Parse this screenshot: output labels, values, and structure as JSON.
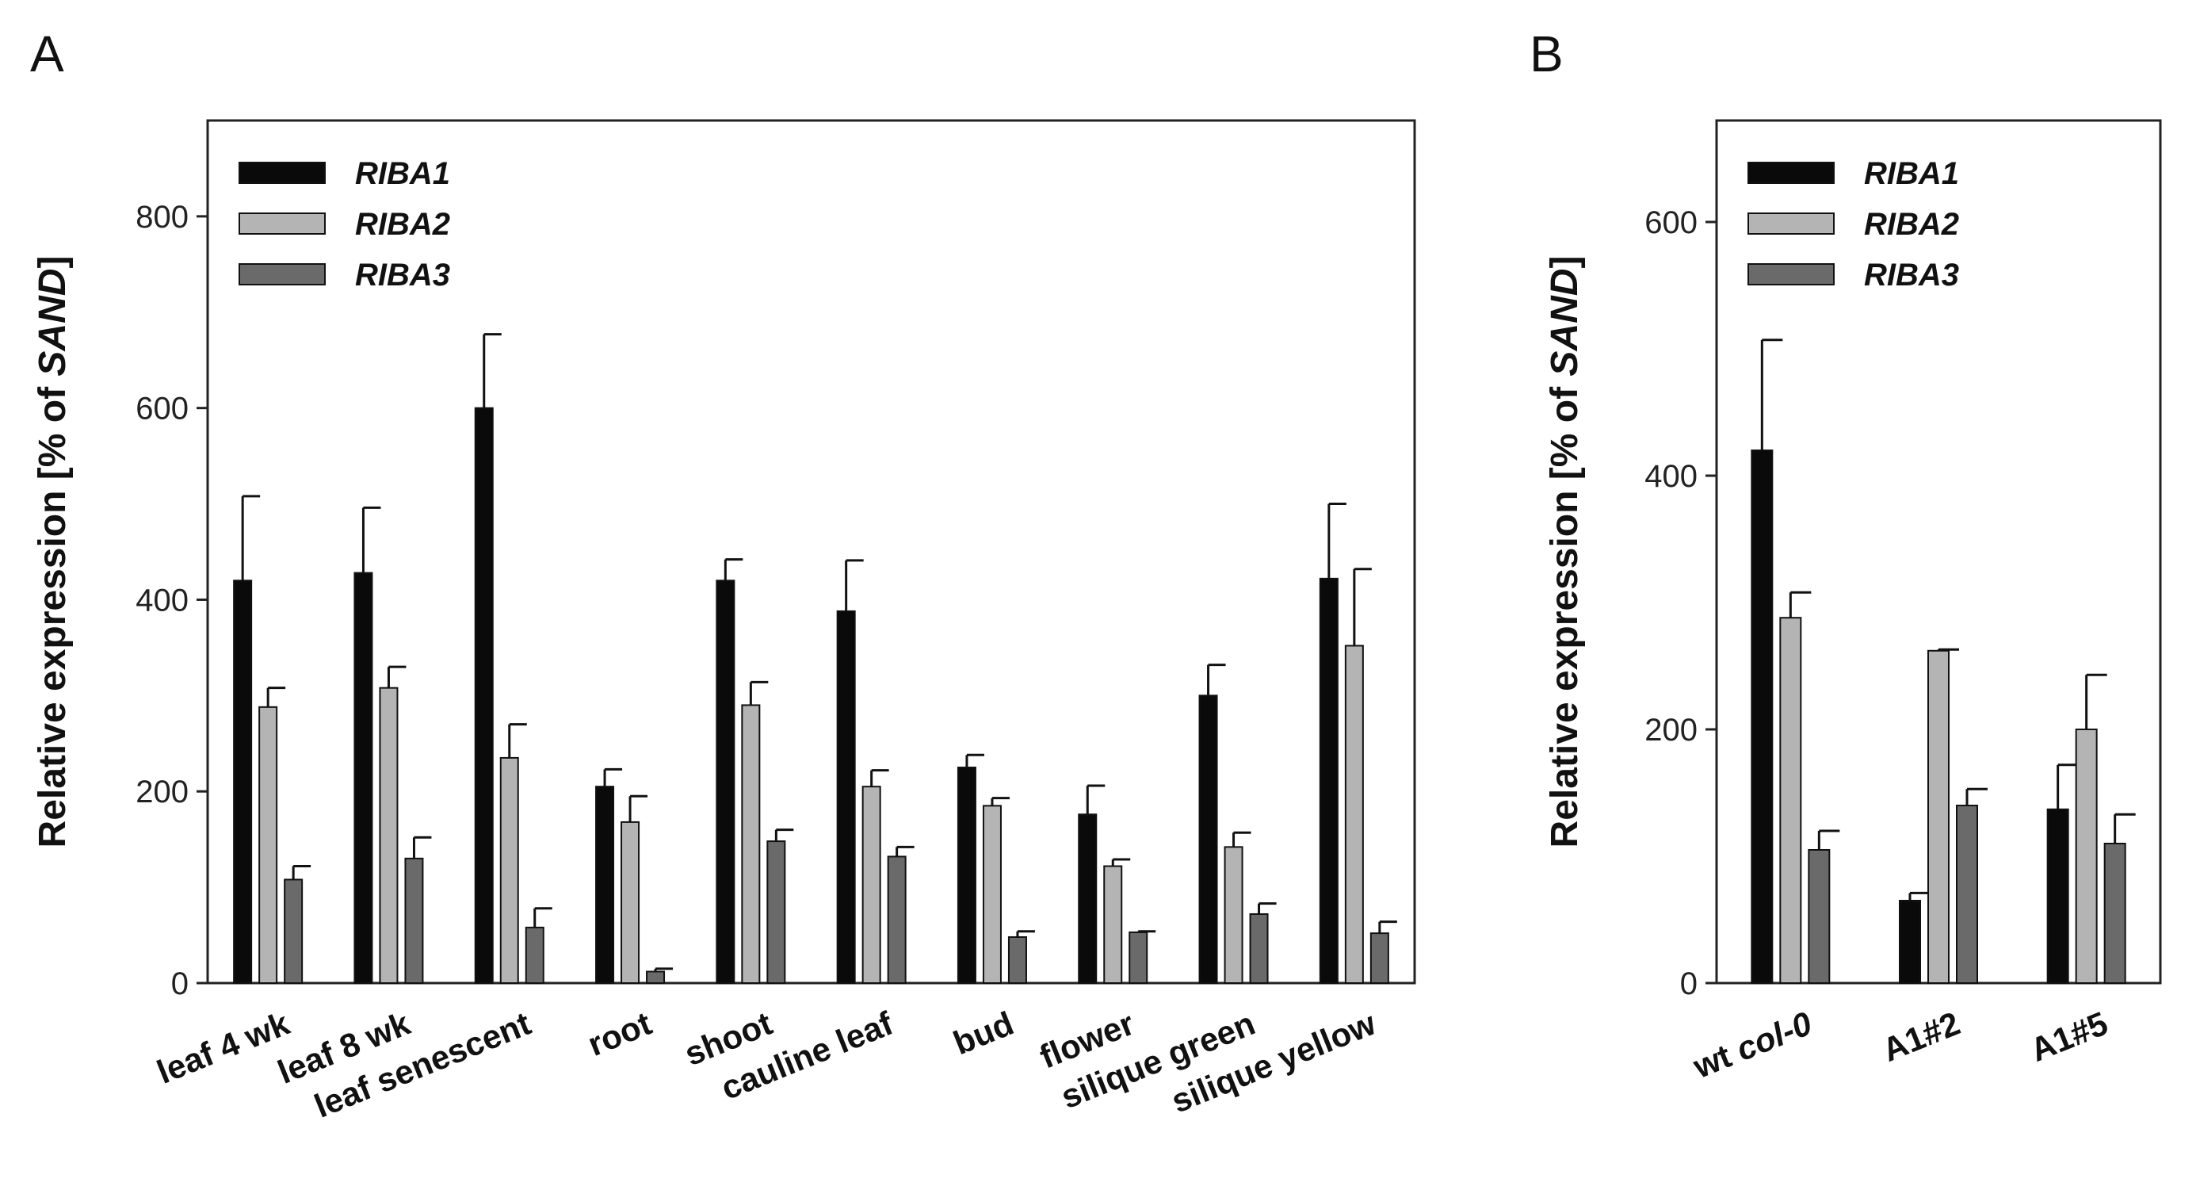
{
  "colors": {
    "RIBA1": "#0a0a0a",
    "RIBA2": "#b4b4b4",
    "RIBA3": "#6a6a6a"
  },
  "chart_data": [
    {
      "panel": "A",
      "type": "bar",
      "title": "",
      "ylabel_prefix": "Relative expression [% of ",
      "ylabel_italic": "SAND",
      "ylabel_suffix": "]",
      "xlabel": "",
      "ylim": [
        0,
        900
      ],
      "yticks": [
        0,
        200,
        400,
        600,
        800
      ],
      "legend": "top-left",
      "categories": [
        "leaf 4 wk",
        "leaf 8 wk",
        "leaf senescent",
        "root",
        "shoot",
        "cauline leaf",
        "bud",
        "flower",
        "silique green",
        "silique yellow"
      ],
      "series": [
        {
          "name": "RIBA1",
          "values": [
            420,
            428,
            600,
            205,
            420,
            388,
            225,
            176,
            300,
            422
          ],
          "errors": [
            88,
            68,
            77,
            18,
            22,
            53,
            13,
            30,
            32,
            78
          ]
        },
        {
          "name": "RIBA2",
          "values": [
            288,
            308,
            235,
            168,
            290,
            205,
            185,
            122,
            142,
            352
          ],
          "errors": [
            20,
            22,
            35,
            27,
            24,
            17,
            8,
            7,
            15,
            80
          ]
        },
        {
          "name": "RIBA3",
          "values": [
            108,
            130,
            58,
            12,
            148,
            132,
            48,
            53,
            72,
            52
          ],
          "errors": [
            14,
            22,
            20,
            3,
            12,
            10,
            6,
            1,
            11,
            12
          ]
        }
      ]
    },
    {
      "panel": "B",
      "type": "bar",
      "title": "",
      "ylabel_prefix": "Relative expression [% of ",
      "ylabel_italic": "SAND",
      "ylabel_suffix": "]",
      "xlabel": "",
      "ylim": [
        0,
        680
      ],
      "yticks": [
        0,
        200,
        400,
        600
      ],
      "legend": "top-left",
      "categories": [
        "wt col-0",
        "A1#2",
        "A1#5"
      ],
      "category_italic_suffix": [
        "col-0",
        "",
        ""
      ],
      "series": [
        {
          "name": "RIBA1",
          "values": [
            420,
            65,
            137
          ],
          "errors": [
            87,
            6,
            35
          ]
        },
        {
          "name": "RIBA2",
          "values": [
            288,
            262,
            200
          ],
          "errors": [
            20,
            1,
            43
          ]
        },
        {
          "name": "RIBA3",
          "values": [
            105,
            140,
            110
          ],
          "errors": [
            15,
            13,
            23
          ]
        }
      ]
    }
  ]
}
